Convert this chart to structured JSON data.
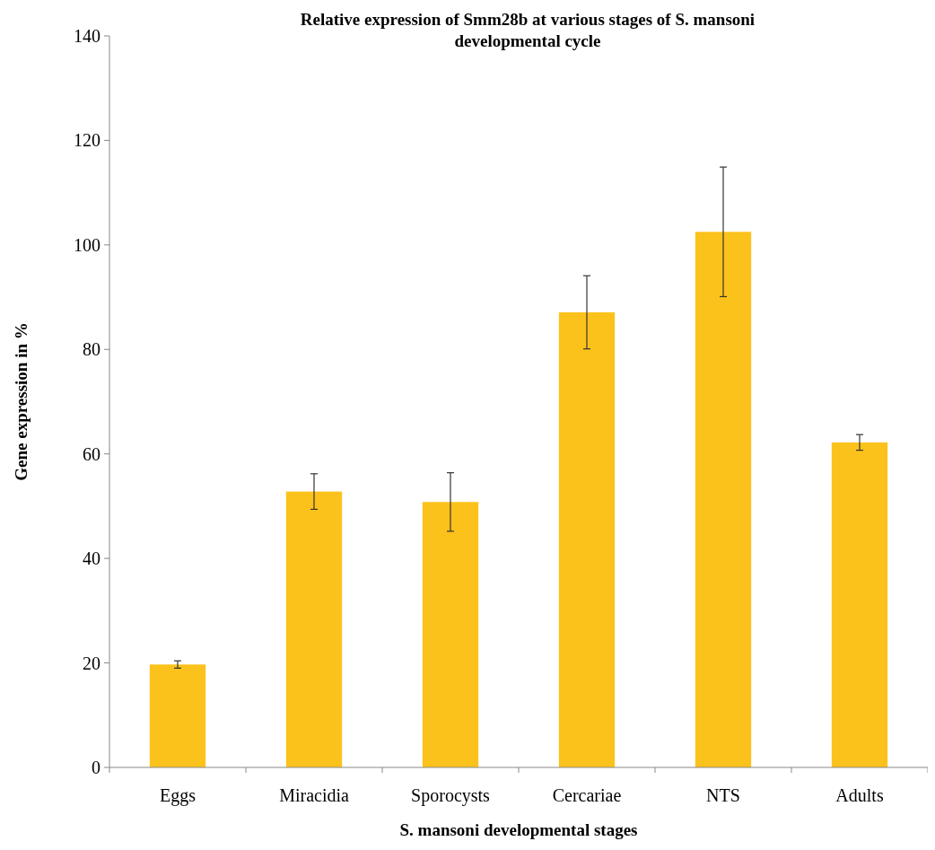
{
  "chart_data": {
    "type": "bar",
    "title": "Relative expression of Smm28b at various stages of S. mansoni developmental cycle",
    "xlabel": "S. mansoni developmental stages",
    "ylabel": "Gene expression in %",
    "categories": [
      "Eggs",
      "Miracidia",
      "Sporocysts",
      "Cercariae",
      "NTS",
      "Adults"
    ],
    "values": [
      19.7,
      52.8,
      50.8,
      87.1,
      102.5,
      62.2
    ],
    "errors": [
      0.7,
      3.4,
      5.6,
      7.0,
      12.4,
      1.5
    ],
    "color": "#fcc21c",
    "ylim": [
      0,
      140
    ],
    "yticks": [
      0,
      20,
      40,
      60,
      80,
      100,
      120,
      140
    ],
    "grid": false
  }
}
